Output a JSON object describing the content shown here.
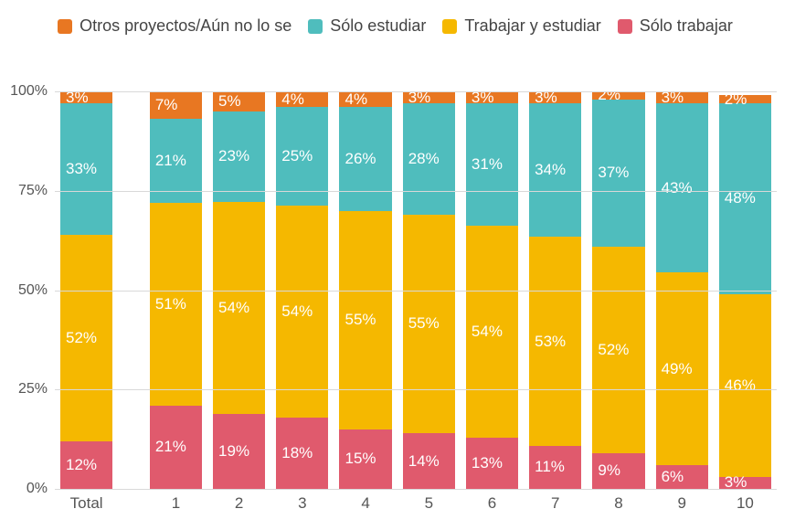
{
  "chart": {
    "type": "stacked-bar-percent",
    "background_color": "#ffffff",
    "grid_color": "#d9d9d9",
    "label_color": "#555555",
    "label_fontsize": 17,
    "legend_fontsize": 18,
    "data_label_color": "#ffffff",
    "data_label_fontsize": 17,
    "ylim": [
      0,
      100
    ],
    "ytick_step": 25,
    "yticks": [
      "0%",
      "25%",
      "50%",
      "75%",
      "100%"
    ],
    "series": [
      {
        "key": "solo_trabajar",
        "label": "Sólo trabajar",
        "color": "#e05a6d"
      },
      {
        "key": "trabajar_y_estudiar",
        "label": "Trabajar y estudiar",
        "color": "#f5b800"
      },
      {
        "key": "solo_estudiar",
        "label": "Sólo estudiar",
        "color": "#4fbdbd"
      },
      {
        "key": "otros",
        "label": "Otros proyectos/Aún no lo se",
        "color": "#e87722"
      }
    ],
    "legend_order": [
      "otros",
      "solo_estudiar",
      "trabajar_y_estudiar",
      "solo_trabajar"
    ],
    "gap_after": [
      "Total"
    ],
    "categories": [
      {
        "name": "Total",
        "solo_trabajar": 12,
        "trabajar_y_estudiar": 52,
        "solo_estudiar": 33,
        "otros": 3
      },
      {
        "name": "1",
        "solo_trabajar": 21,
        "trabajar_y_estudiar": 51,
        "solo_estudiar": 21,
        "otros": 7
      },
      {
        "name": "2",
        "solo_trabajar": 19,
        "trabajar_y_estudiar": 54,
        "solo_estudiar": 23,
        "otros": 5
      },
      {
        "name": "3",
        "solo_trabajar": 18,
        "trabajar_y_estudiar": 54,
        "solo_estudiar": 25,
        "otros": 4
      },
      {
        "name": "4",
        "solo_trabajar": 15,
        "trabajar_y_estudiar": 55,
        "solo_estudiar": 26,
        "otros": 4
      },
      {
        "name": "5",
        "solo_trabajar": 14,
        "trabajar_y_estudiar": 55,
        "solo_estudiar": 28,
        "otros": 3
      },
      {
        "name": "6",
        "solo_trabajar": 13,
        "trabajar_y_estudiar": 54,
        "solo_estudiar": 31,
        "otros": 3
      },
      {
        "name": "7",
        "solo_trabajar": 11,
        "trabajar_y_estudiar": 53,
        "solo_estudiar": 34,
        "otros": 3
      },
      {
        "name": "8",
        "solo_trabajar": 9,
        "trabajar_y_estudiar": 52,
        "solo_estudiar": 37,
        "otros": 2
      },
      {
        "name": "9",
        "solo_trabajar": 6,
        "trabajar_y_estudiar": 49,
        "solo_estudiar": 43,
        "otros": 3
      },
      {
        "name": "10",
        "solo_trabajar": 3,
        "trabajar_y_estudiar": 46,
        "solo_estudiar": 48,
        "otros": 2
      }
    ]
  }
}
